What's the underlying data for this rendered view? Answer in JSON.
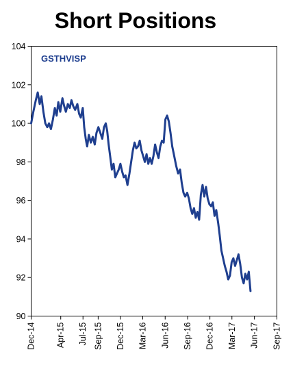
{
  "chart_data": {
    "type": "line",
    "title": "Short Positions",
    "xlabel": "",
    "ylabel": "",
    "ylim": [
      90,
      104
    ],
    "yticks": [
      90,
      92,
      94,
      96,
      98,
      100,
      102,
      104
    ],
    "xlim": [
      "2014-12",
      "2017-09"
    ],
    "xticks": [
      "Dec-14",
      "Apr-15",
      "Jul-15",
      "Sep-15",
      "Dec-15",
      "Mar-16",
      "Jun-16",
      "Sep-16",
      "Dec-16",
      "Mar-17",
      "Jun-17",
      "Sep-17"
    ],
    "grid": false,
    "legend": "none",
    "series": [
      {
        "name": "GSTHVISP",
        "color": "#1f3f8f",
        "points": [
          [
            "2014-12-01",
            100.0
          ],
          [
            "2014-12-10",
            100.6
          ],
          [
            "2014-12-20",
            101.2
          ],
          [
            "2014-12-28",
            101.6
          ],
          [
            "2015-01-05",
            101.0
          ],
          [
            "2015-01-12",
            101.4
          ],
          [
            "2015-01-20",
            100.6
          ],
          [
            "2015-01-28",
            100.0
          ],
          [
            "2015-02-05",
            99.8
          ],
          [
            "2015-02-12",
            100.0
          ],
          [
            "2015-02-20",
            99.7
          ],
          [
            "2015-02-28",
            100.2
          ],
          [
            "2015-03-08",
            100.8
          ],
          [
            "2015-03-15",
            100.4
          ],
          [
            "2015-03-22",
            101.1
          ],
          [
            "2015-03-30",
            100.6
          ],
          [
            "2015-04-08",
            101.3
          ],
          [
            "2015-04-15",
            100.9
          ],
          [
            "2015-04-22",
            100.6
          ],
          [
            "2015-04-30",
            101.0
          ],
          [
            "2015-05-08",
            100.8
          ],
          [
            "2015-05-15",
            101.2
          ],
          [
            "2015-05-22",
            100.9
          ],
          [
            "2015-05-30",
            100.7
          ],
          [
            "2015-06-08",
            101.0
          ],
          [
            "2015-06-15",
            100.5
          ],
          [
            "2015-06-22",
            100.3
          ],
          [
            "2015-06-30",
            100.8
          ],
          [
            "2015-07-06",
            99.8
          ],
          [
            "2015-07-12",
            99.2
          ],
          [
            "2015-07-18",
            98.8
          ],
          [
            "2015-07-25",
            99.4
          ],
          [
            "2015-08-02",
            99.0
          ],
          [
            "2015-08-10",
            99.3
          ],
          [
            "2015-08-18",
            98.9
          ],
          [
            "2015-08-25",
            99.5
          ],
          [
            "2015-09-02",
            99.8
          ],
          [
            "2015-09-10",
            99.5
          ],
          [
            "2015-09-18",
            99.2
          ],
          [
            "2015-09-25",
            99.8
          ],
          [
            "2015-10-02",
            100.0
          ],
          [
            "2015-10-08",
            99.6
          ],
          [
            "2015-10-14",
            98.9
          ],
          [
            "2015-10-20",
            98.3
          ],
          [
            "2015-10-27",
            97.6
          ],
          [
            "2015-11-03",
            97.9
          ],
          [
            "2015-11-10",
            97.2
          ],
          [
            "2015-11-17",
            97.4
          ],
          [
            "2015-11-24",
            97.6
          ],
          [
            "2015-12-01",
            97.9
          ],
          [
            "2015-12-08",
            97.5
          ],
          [
            "2015-12-15",
            97.2
          ],
          [
            "2015-12-22",
            97.3
          ],
          [
            "2015-12-30",
            96.8
          ],
          [
            "2016-01-07",
            97.4
          ],
          [
            "2016-01-14",
            98.0
          ],
          [
            "2016-01-21",
            98.6
          ],
          [
            "2016-01-28",
            99.0
          ],
          [
            "2016-02-04",
            98.7
          ],
          [
            "2016-02-11",
            98.8
          ],
          [
            "2016-02-18",
            99.1
          ],
          [
            "2016-02-25",
            98.6
          ],
          [
            "2016-03-03",
            98.3
          ],
          [
            "2016-03-10",
            98.0
          ],
          [
            "2016-03-17",
            98.4
          ],
          [
            "2016-03-24",
            97.9
          ],
          [
            "2016-03-31",
            98.2
          ],
          [
            "2016-04-07",
            97.9
          ],
          [
            "2016-04-14",
            98.3
          ],
          [
            "2016-04-21",
            98.9
          ],
          [
            "2016-04-28",
            98.5
          ],
          [
            "2016-05-05",
            98.2
          ],
          [
            "2016-05-12",
            98.8
          ],
          [
            "2016-05-19",
            99.1
          ],
          [
            "2016-05-26",
            99.0
          ],
          [
            "2016-06-02",
            100.2
          ],
          [
            "2016-06-09",
            100.4
          ],
          [
            "2016-06-16",
            100.1
          ],
          [
            "2016-06-23",
            99.5
          ],
          [
            "2016-06-30",
            98.8
          ],
          [
            "2016-07-08",
            98.3
          ],
          [
            "2016-07-16",
            97.8
          ],
          [
            "2016-07-24",
            97.4
          ],
          [
            "2016-08-01",
            97.6
          ],
          [
            "2016-08-08",
            96.9
          ],
          [
            "2016-08-15",
            96.4
          ],
          [
            "2016-08-22",
            96.2
          ],
          [
            "2016-08-30",
            96.4
          ],
          [
            "2016-09-06",
            96.1
          ],
          [
            "2016-09-13",
            95.6
          ],
          [
            "2016-09-20",
            95.3
          ],
          [
            "2016-09-27",
            95.6
          ],
          [
            "2016-10-04",
            95.1
          ],
          [
            "2016-10-11",
            95.4
          ],
          [
            "2016-10-18",
            95.0
          ],
          [
            "2016-10-25",
            96.3
          ],
          [
            "2016-11-01",
            96.8
          ],
          [
            "2016-11-08",
            96.2
          ],
          [
            "2016-11-15",
            96.7
          ],
          [
            "2016-11-22",
            96.1
          ],
          [
            "2016-11-29",
            95.8
          ],
          [
            "2016-12-06",
            95.7
          ],
          [
            "2016-12-13",
            95.9
          ],
          [
            "2016-12-20",
            95.2
          ],
          [
            "2016-12-27",
            95.5
          ],
          [
            "2017-01-04",
            94.8
          ],
          [
            "2017-01-10",
            94.2
          ],
          [
            "2017-01-17",
            93.4
          ],
          [
            "2017-01-24",
            93.0
          ],
          [
            "2017-01-31",
            92.6
          ],
          [
            "2017-02-07",
            92.3
          ],
          [
            "2017-02-14",
            91.9
          ],
          [
            "2017-02-21",
            92.1
          ],
          [
            "2017-02-28",
            92.8
          ],
          [
            "2017-03-07",
            93.0
          ],
          [
            "2017-03-14",
            92.6
          ],
          [
            "2017-03-21",
            92.9
          ],
          [
            "2017-03-28",
            93.2
          ],
          [
            "2017-04-04",
            92.7
          ],
          [
            "2017-04-11",
            92.0
          ],
          [
            "2017-04-18",
            91.7
          ],
          [
            "2017-04-25",
            92.2
          ],
          [
            "2017-05-02",
            91.9
          ],
          [
            "2017-05-09",
            92.3
          ],
          [
            "2017-05-16",
            91.3
          ]
        ]
      }
    ]
  }
}
